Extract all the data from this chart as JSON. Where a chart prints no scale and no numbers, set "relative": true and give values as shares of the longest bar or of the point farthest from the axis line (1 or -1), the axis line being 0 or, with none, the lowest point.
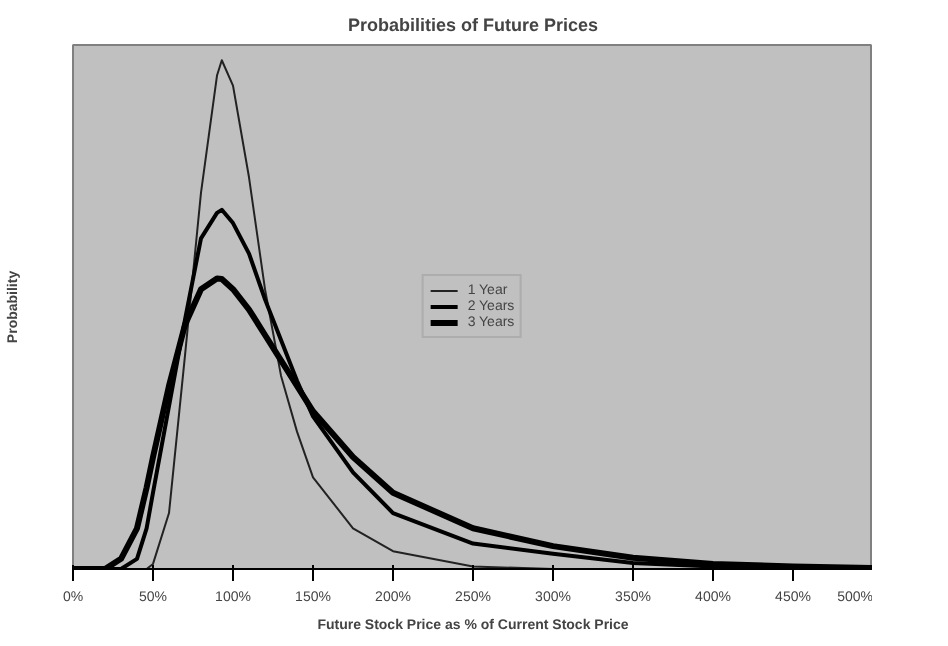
{
  "chart_data": {
    "type": "line",
    "title": "Probabilities of Future Prices",
    "xlabel": "Future Stock Price as % of Current Stock Price",
    "ylabel": "Probability",
    "relative": true,
    "legend": "top right",
    "grid": false,
    "xlim": [
      0,
      500
    ],
    "xticks": [
      {
        "value": 0,
        "label": "0%"
      },
      {
        "value": 50,
        "label": "50%"
      },
      {
        "value": 100,
        "label": "100%"
      },
      {
        "value": 150,
        "label": "150%"
      },
      {
        "value": 200,
        "label": "200%"
      },
      {
        "value": 250,
        "label": "250%"
      },
      {
        "value": 300,
        "label": "300%"
      },
      {
        "value": 350,
        "label": "350%"
      },
      {
        "value": 400,
        "label": "400%"
      },
      {
        "value": 450,
        "label": "450%"
      },
      {
        "value": 500,
        "label": "500%"
      }
    ],
    "x": [
      0,
      20,
      30,
      40,
      46,
      50,
      60,
      70,
      80,
      90,
      93,
      100,
      110,
      120,
      130,
      140,
      150,
      175,
      200,
      250,
      300,
      350,
      400,
      450,
      500
    ],
    "series": [
      {
        "name": "1 Year",
        "color": "#222222",
        "values": [
          0,
          0,
          0,
          0,
          0,
          0.01,
          0.11,
          0.42,
          0.74,
          0.97,
          1,
          0.95,
          0.77,
          0.55,
          0.38,
          0.27,
          0.18,
          0.08,
          0.035,
          0.005,
          0,
          0,
          0,
          0,
          0
        ]
      },
      {
        "name": "2 Years",
        "color": "#000000",
        "values": [
          0,
          0,
          0,
          0.02,
          0.08,
          0.15,
          0.32,
          0.49,
          0.65,
          0.7,
          0.706,
          0.68,
          0.62,
          0.53,
          0.45,
          0.37,
          0.3,
          0.19,
          0.11,
          0.05,
          0.03,
          0.012,
          0.005,
          0.002,
          0
        ]
      },
      {
        "name": "3 Years",
        "color": "#000000",
        "values": [
          0,
          0,
          0.02,
          0.08,
          0.16,
          0.22,
          0.36,
          0.48,
          0.55,
          0.571,
          0.57,
          0.55,
          0.51,
          0.46,
          0.41,
          0.36,
          0.31,
          0.22,
          0.15,
          0.08,
          0.045,
          0.022,
          0.01,
          0.005,
          0.002
        ]
      }
    ]
  }
}
